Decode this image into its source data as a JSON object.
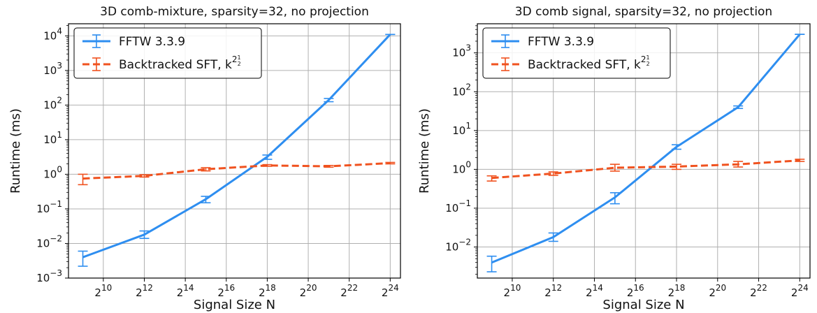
{
  "chart_data": [
    {
      "type": "line",
      "title": "3D comb-mixture, sparsity=32, no projection",
      "xlabel": "Signal Size N",
      "ylabel": "Runtime (ms)",
      "x_scale": "log2",
      "y_scale": "log10",
      "xlim_exp": [
        8.3,
        24.5
      ],
      "ylim_exp": [
        -3.0,
        4.35
      ],
      "x_ticks": [
        {
          "base": "2",
          "exp": "10",
          "x": 10
        },
        {
          "base": "2",
          "exp": "12",
          "x": 12
        },
        {
          "base": "2",
          "exp": "14",
          "x": 14
        },
        {
          "base": "2",
          "exp": "16",
          "x": 16
        },
        {
          "base": "2",
          "exp": "18",
          "x": 18
        },
        {
          "base": "2",
          "exp": "20",
          "x": 20
        },
        {
          "base": "2",
          "exp": "22",
          "x": 22
        },
        {
          "base": "2",
          "exp": "24",
          "x": 24
        }
      ],
      "y_ticks": [
        {
          "base": "10",
          "exp": "−3",
          "y": -3
        },
        {
          "base": "10",
          "exp": "−2",
          "y": -2
        },
        {
          "base": "10",
          "exp": "−1",
          "y": -1
        },
        {
          "base": "10",
          "exp": "0",
          "y": 0
        },
        {
          "base": "10",
          "exp": "1",
          "y": 1
        },
        {
          "base": "10",
          "exp": "2",
          "y": 2
        },
        {
          "base": "10",
          "exp": "3",
          "y": 3
        },
        {
          "base": "10",
          "exp": "4",
          "y": 4
        }
      ],
      "grid": true,
      "legend_position": "top-left",
      "series": [
        {
          "name": "FFTW 3.3.9",
          "color": "#2e8ef0",
          "style": "solid",
          "log2_N": [
            9,
            12,
            15,
            18,
            21,
            24
          ],
          "y": [
            0.004,
            0.018,
            0.19,
            3.2,
            140,
            11000
          ],
          "err_low": [
            0.0022,
            0.014,
            0.15,
            2.7,
            125,
            11000
          ],
          "err_high": [
            0.006,
            0.023,
            0.23,
            3.6,
            155,
            11000
          ]
        },
        {
          "name": "Backtracked SFT, k^{2^{1/2}}",
          "legend_base": "Backtracked SFT, k",
          "legend_sup": "2",
          "legend_supsup": "1",
          "legend_supsub": "2",
          "color": "#f0521f",
          "style": "dashed",
          "log2_N": [
            9,
            12,
            15,
            18,
            21,
            24
          ],
          "y": [
            0.75,
            0.9,
            1.4,
            1.8,
            1.7,
            2.1
          ],
          "err_low": [
            0.5,
            0.83,
            1.25,
            1.7,
            1.6,
            2.0
          ],
          "err_high": [
            1.0,
            0.97,
            1.55,
            1.9,
            1.8,
            2.2
          ]
        }
      ]
    },
    {
      "type": "line",
      "title": "3D comb signal, sparsity=32, no projection",
      "xlabel": "Signal Size N",
      "ylabel": "Runtime (ms)",
      "x_scale": "log2",
      "y_scale": "log10",
      "xlim_exp": [
        8.3,
        24.5
      ],
      "ylim_exp": [
        -2.8,
        3.75
      ],
      "x_ticks": [
        {
          "base": "2",
          "exp": "10",
          "x": 10
        },
        {
          "base": "2",
          "exp": "12",
          "x": 12
        },
        {
          "base": "2",
          "exp": "14",
          "x": 14
        },
        {
          "base": "2",
          "exp": "16",
          "x": 16
        },
        {
          "base": "2",
          "exp": "18",
          "x": 18
        },
        {
          "base": "2",
          "exp": "20",
          "x": 20
        },
        {
          "base": "2",
          "exp": "22",
          "x": 22
        },
        {
          "base": "2",
          "exp": "24",
          "x": 24
        }
      ],
      "y_ticks": [
        {
          "base": "10",
          "exp": "−2",
          "y": -2
        },
        {
          "base": "10",
          "exp": "−1",
          "y": -1
        },
        {
          "base": "10",
          "exp": "0",
          "y": 0
        },
        {
          "base": "10",
          "exp": "1",
          "y": 1
        },
        {
          "base": "10",
          "exp": "2",
          "y": 2
        },
        {
          "base": "10",
          "exp": "3",
          "y": 3
        }
      ],
      "grid": true,
      "legend_position": "top-left",
      "series": [
        {
          "name": "FFTW 3.3.9",
          "color": "#2e8ef0",
          "style": "solid",
          "log2_N": [
            9,
            12,
            15,
            18,
            21,
            24
          ],
          "y": [
            0.004,
            0.018,
            0.19,
            3.8,
            40,
            3000
          ],
          "err_low": [
            0.0023,
            0.014,
            0.13,
            3.3,
            37,
            3000
          ],
          "err_high": [
            0.0058,
            0.023,
            0.25,
            4.3,
            43,
            3000
          ]
        },
        {
          "name": "Backtracked SFT, k^{2^{1/2}}",
          "legend_base": "Backtracked SFT, k",
          "legend_sup": "2",
          "legend_supsup": "1",
          "legend_supsub": "2",
          "color": "#f0521f",
          "style": "dashed",
          "log2_N": [
            9,
            12,
            15,
            18,
            21,
            24
          ],
          "y": [
            0.6,
            0.78,
            1.1,
            1.18,
            1.35,
            1.7
          ],
          "err_low": [
            0.5,
            0.7,
            0.9,
            1.0,
            1.15,
            1.6
          ],
          "err_high": [
            0.68,
            0.86,
            1.35,
            1.35,
            1.6,
            1.82
          ]
        }
      ]
    }
  ]
}
